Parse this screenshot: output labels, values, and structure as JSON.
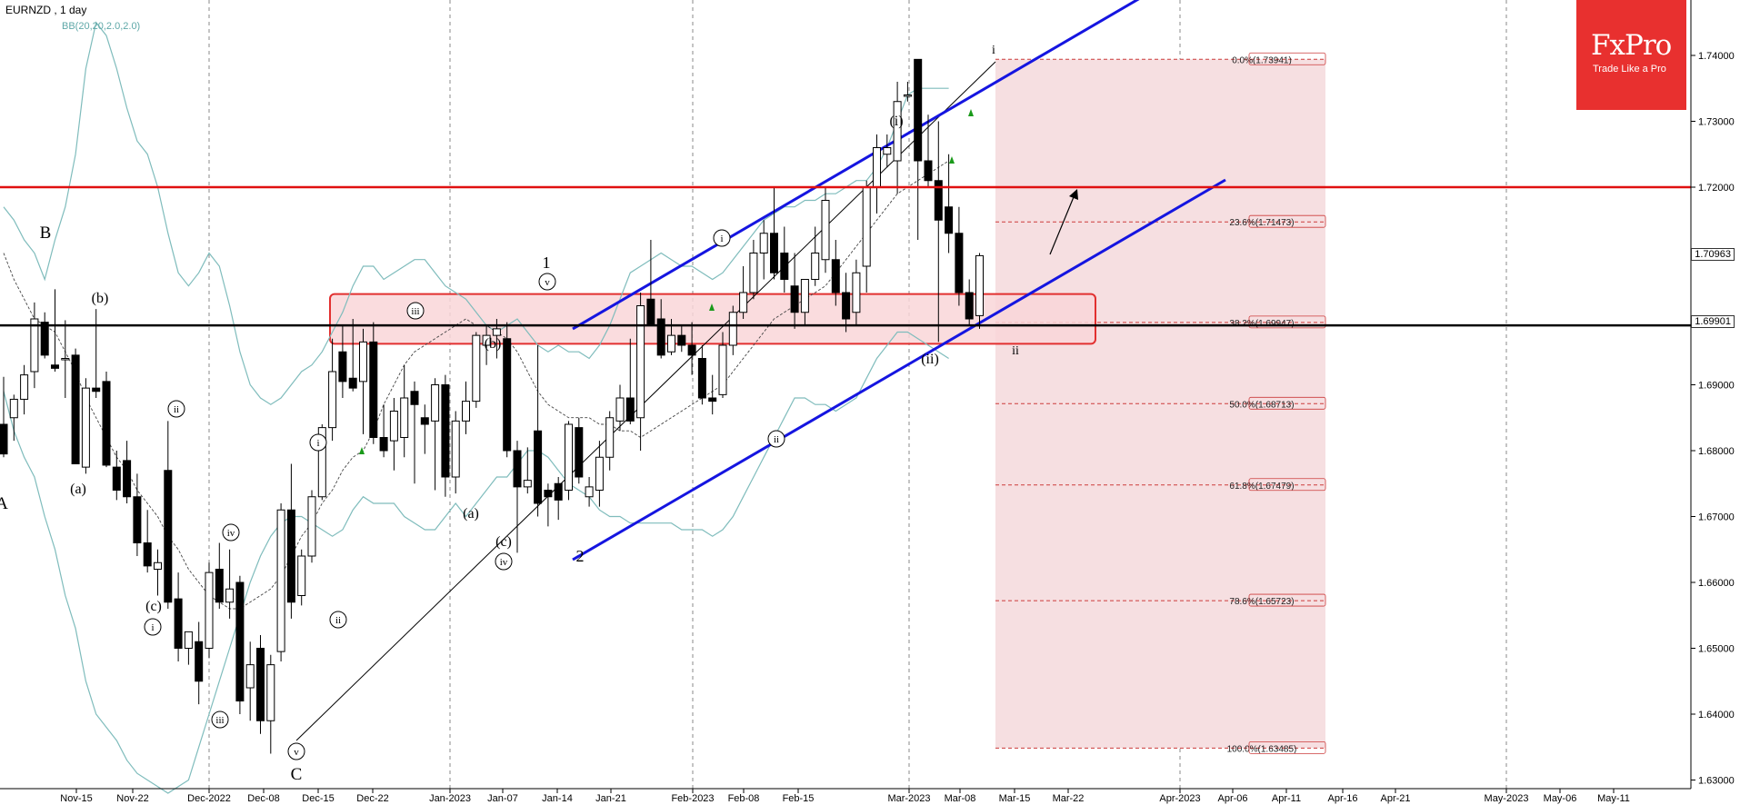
{
  "header": {
    "symbol": "EURNZD , 1 day",
    "indicator": "BB(20,20,2.0,2.0)"
  },
  "logo": {
    "brand": "FxPro",
    "tagline": "Trade Like a Pro"
  },
  "price_boxes": {
    "current": "1.70963",
    "line": "1.69901"
  },
  "colors": {
    "channel": "#1515e0",
    "resistance": "#e01010",
    "support": "#000000",
    "zone_fill": "#f9d6d8",
    "zone_border": "#e23030",
    "fib_fill": "#f6dfe1",
    "fib_line": "#cc3b3b",
    "bollinger": "#7fbcbc",
    "logo_bg": "#e8302f"
  },
  "chart_data": {
    "type": "candlestick",
    "x_tick_labels": [
      "Nov-15",
      "Nov-22",
      "Dec-2022",
      "Dec-08",
      "Dec-15",
      "Dec-22",
      "Jan-2023",
      "Jan-07",
      "Jan-14",
      "Jan-21",
      "Feb-2023",
      "Feb-08",
      "Feb-15",
      "Mar-2023",
      "Mar-08",
      "Mar-15",
      "Mar-22",
      "Apr-2023",
      "Apr-06",
      "Apr-11",
      "Apr-16",
      "Apr-21",
      "May-2023",
      "May-06",
      "May-11"
    ],
    "y_tick_labels": [
      "1.74000",
      "1.73000",
      "1.72000",
      "1.71000",
      "1.70000",
      "1.69000",
      "1.68000",
      "1.67000",
      "1.66000",
      "1.65000",
      "1.64000",
      "1.63000"
    ],
    "ylim": [
      1.6285,
      1.7475
    ],
    "grid": "vertical dashed",
    "candles": [
      {
        "o": 1.684,
        "h": 1.6912,
        "l": 1.679,
        "c": 1.6795
      },
      {
        "o": 1.685,
        "h": 1.6885,
        "l": 1.6815,
        "c": 1.6878
      },
      {
        "o": 1.6878,
        "h": 1.693,
        "l": 1.6855,
        "c": 1.6915
      },
      {
        "o": 1.692,
        "h": 1.7025,
        "l": 1.6895,
        "c": 1.7
      },
      {
        "o": 1.6995,
        "h": 1.701,
        "l": 1.694,
        "c": 1.6945
      },
      {
        "o": 1.693,
        "h": 1.7045,
        "l": 1.692,
        "c": 1.6925
      },
      {
        "o": 1.694,
        "h": 1.6998,
        "l": 1.688,
        "c": 1.694
      },
      {
        "o": 1.6945,
        "h": 1.6955,
        "l": 1.6785,
        "c": 1.678
      },
      {
        "o": 1.6775,
        "h": 1.691,
        "l": 1.6765,
        "c": 1.6895
      },
      {
        "o": 1.6895,
        "h": 1.7015,
        "l": 1.688,
        "c": 1.689
      },
      {
        "o": 1.6905,
        "h": 1.692,
        "l": 1.6775,
        "c": 1.6778
      },
      {
        "o": 1.6775,
        "h": 1.68,
        "l": 1.6725,
        "c": 1.674
      },
      {
        "o": 1.6785,
        "h": 1.6815,
        "l": 1.672,
        "c": 1.673
      },
      {
        "o": 1.673,
        "h": 1.6765,
        "l": 1.664,
        "c": 1.666
      },
      {
        "o": 1.666,
        "h": 1.671,
        "l": 1.6615,
        "c": 1.6625
      },
      {
        "o": 1.662,
        "h": 1.665,
        "l": 1.658,
        "c": 1.663
      },
      {
        "o": 1.677,
        "h": 1.6845,
        "l": 1.656,
        "c": 1.657
      },
      {
        "o": 1.6575,
        "h": 1.6615,
        "l": 1.648,
        "c": 1.65
      },
      {
        "o": 1.65,
        "h": 1.652,
        "l": 1.6475,
        "c": 1.6525
      },
      {
        "o": 1.651,
        "h": 1.654,
        "l": 1.6415,
        "c": 1.645
      },
      {
        "o": 1.65,
        "h": 1.663,
        "l": 1.6485,
        "c": 1.6615
      },
      {
        "o": 1.662,
        "h": 1.666,
        "l": 1.656,
        "c": 1.657
      },
      {
        "o": 1.657,
        "h": 1.665,
        "l": 1.6545,
        "c": 1.659
      },
      {
        "o": 1.66,
        "h": 1.661,
        "l": 1.64,
        "c": 1.642
      },
      {
        "o": 1.644,
        "h": 1.651,
        "l": 1.639,
        "c": 1.6475
      },
      {
        "o": 1.65,
        "h": 1.652,
        "l": 1.637,
        "c": 1.639
      },
      {
        "o": 1.639,
        "h": 1.649,
        "l": 1.634,
        "c": 1.6475
      },
      {
        "o": 1.6495,
        "h": 1.672,
        "l": 1.648,
        "c": 1.671
      },
      {
        "o": 1.671,
        "h": 1.678,
        "l": 1.6545,
        "c": 1.657
      },
      {
        "o": 1.658,
        "h": 1.665,
        "l": 1.6565,
        "c": 1.664
      },
      {
        "o": 1.664,
        "h": 1.674,
        "l": 1.663,
        "c": 1.673
      },
      {
        "o": 1.673,
        "h": 1.684,
        "l": 1.6725,
        "c": 1.6835
      },
      {
        "o": 1.6835,
        "h": 1.697,
        "l": 1.6815,
        "c": 1.692
      },
      {
        "o": 1.695,
        "h": 1.699,
        "l": 1.688,
        "c": 1.6905
      },
      {
        "o": 1.691,
        "h": 1.7,
        "l": 1.689,
        "c": 1.6895
      },
      {
        "o": 1.6905,
        "h": 1.6985,
        "l": 1.6825,
        "c": 1.6965
      },
      {
        "o": 1.6965,
        "h": 1.6995,
        "l": 1.681,
        "c": 1.682
      },
      {
        "o": 1.682,
        "h": 1.687,
        "l": 1.679,
        "c": 1.68
      },
      {
        "o": 1.6815,
        "h": 1.688,
        "l": 1.677,
        "c": 1.686
      },
      {
        "o": 1.682,
        "h": 1.693,
        "l": 1.679,
        "c": 1.688
      },
      {
        "o": 1.689,
        "h": 1.6905,
        "l": 1.675,
        "c": 1.687
      },
      {
        "o": 1.685,
        "h": 1.687,
        "l": 1.6795,
        "c": 1.684
      },
      {
        "o": 1.6845,
        "h": 1.691,
        "l": 1.674,
        "c": 1.69
      },
      {
        "o": 1.69,
        "h": 1.6915,
        "l": 1.673,
        "c": 1.676
      },
      {
        "o": 1.676,
        "h": 1.686,
        "l": 1.6735,
        "c": 1.6845
      },
      {
        "o": 1.6845,
        "h": 1.6905,
        "l": 1.6825,
        "c": 1.6875
      },
      {
        "o": 1.6875,
        "h": 1.698,
        "l": 1.6865,
        "c": 1.6975
      },
      {
        "o": 1.696,
        "h": 1.699,
        "l": 1.693,
        "c": 1.6975
      },
      {
        "o": 1.6975,
        "h": 1.7,
        "l": 1.694,
        "c": 1.6985
      },
      {
        "o": 1.697,
        "h": 1.6995,
        "l": 1.679,
        "c": 1.68
      },
      {
        "o": 1.68,
        "h": 1.6815,
        "l": 1.6645,
        "c": 1.6745
      },
      {
        "o": 1.6745,
        "h": 1.6805,
        "l": 1.6735,
        "c": 1.6755
      },
      {
        "o": 1.683,
        "h": 1.696,
        "l": 1.67,
        "c": 1.672
      },
      {
        "o": 1.674,
        "h": 1.675,
        "l": 1.6685,
        "c": 1.673
      },
      {
        "o": 1.675,
        "h": 1.676,
        "l": 1.6695,
        "c": 1.6725
      },
      {
        "o": 1.674,
        "h": 1.6845,
        "l": 1.6725,
        "c": 1.684
      },
      {
        "o": 1.6835,
        "h": 1.685,
        "l": 1.675,
        "c": 1.676
      },
      {
        "o": 1.673,
        "h": 1.676,
        "l": 1.6715,
        "c": 1.6745
      },
      {
        "o": 1.674,
        "h": 1.6815,
        "l": 1.6715,
        "c": 1.679
      },
      {
        "o": 1.679,
        "h": 1.686,
        "l": 1.677,
        "c": 1.685
      },
      {
        "o": 1.6845,
        "h": 1.69,
        "l": 1.683,
        "c": 1.688
      },
      {
        "o": 1.688,
        "h": 1.697,
        "l": 1.684,
        "c": 1.6845
      },
      {
        "o": 1.685,
        "h": 1.704,
        "l": 1.68,
        "c": 1.702
      },
      {
        "o": 1.703,
        "h": 1.712,
        "l": 1.699,
        "c": 1.699
      },
      {
        "o": 1.7,
        "h": 1.703,
        "l": 1.694,
        "c": 1.6945
      },
      {
        "o": 1.695,
        "h": 1.7,
        "l": 1.6945,
        "c": 1.6975
      },
      {
        "o": 1.6975,
        "h": 1.699,
        "l": 1.695,
        "c": 1.696
      },
      {
        "o": 1.696,
        "h": 1.6995,
        "l": 1.6915,
        "c": 1.6945
      },
      {
        "o": 1.694,
        "h": 1.696,
        "l": 1.687,
        "c": 1.688
      },
      {
        "o": 1.688,
        "h": 1.6915,
        "l": 1.6855,
        "c": 1.6875
      },
      {
        "o": 1.6885,
        "h": 1.698,
        "l": 1.688,
        "c": 1.696
      },
      {
        "o": 1.696,
        "h": 1.702,
        "l": 1.6945,
        "c": 1.701
      },
      {
        "o": 1.701,
        "h": 1.708,
        "l": 1.7,
        "c": 1.704
      },
      {
        "o": 1.704,
        "h": 1.712,
        "l": 1.703,
        "c": 1.71
      },
      {
        "o": 1.71,
        "h": 1.715,
        "l": 1.706,
        "c": 1.713
      },
      {
        "o": 1.713,
        "h": 1.72,
        "l": 1.706,
        "c": 1.707
      },
      {
        "o": 1.71,
        "h": 1.714,
        "l": 1.704,
        "c": 1.706
      },
      {
        "o": 1.705,
        "h": 1.71,
        "l": 1.6985,
        "c": 1.701
      },
      {
        "o": 1.701,
        "h": 1.706,
        "l": 1.699,
        "c": 1.706
      },
      {
        "o": 1.706,
        "h": 1.714,
        "l": 1.705,
        "c": 1.71
      },
      {
        "o": 1.709,
        "h": 1.72,
        "l": 1.707,
        "c": 1.718
      },
      {
        "o": 1.709,
        "h": 1.712,
        "l": 1.702,
        "c": 1.704
      },
      {
        "o": 1.704,
        "h": 1.707,
        "l": 1.698,
        "c": 1.7
      },
      {
        "o": 1.701,
        "h": 1.709,
        "l": 1.699,
        "c": 1.707
      },
      {
        "o": 1.708,
        "h": 1.721,
        "l": 1.704,
        "c": 1.72
      },
      {
        "o": 1.72,
        "h": 1.728,
        "l": 1.716,
        "c": 1.726
      },
      {
        "o": 1.725,
        "h": 1.728,
        "l": 1.723,
        "c": 1.726
      },
      {
        "o": 1.724,
        "h": 1.736,
        "l": 1.719,
        "c": 1.733
      },
      {
        "o": 1.734,
        "h": 1.736,
        "l": 1.733,
        "c": 1.734
      },
      {
        "o": 1.7394,
        "h": 1.7394,
        "l": 1.712,
        "c": 1.724
      },
      {
        "o": 1.724,
        "h": 1.731,
        "l": 1.72,
        "c": 1.721
      },
      {
        "o": 1.721,
        "h": 1.73,
        "l": 1.6965,
        "c": 1.715
      },
      {
        "o": 1.717,
        "h": 1.725,
        "l": 1.71,
        "c": 1.713
      },
      {
        "o": 1.713,
        "h": 1.717,
        "l": 1.702,
        "c": 1.704
      },
      {
        "o": 1.704,
        "h": 1.706,
        "l": 1.699,
        "c": 1.7
      },
      {
        "o": 1.7005,
        "h": 1.71,
        "l": 1.6985,
        "c": 1.7096
      }
    ],
    "bollinger": {
      "upper": [
        1.717,
        1.715,
        1.712,
        1.71,
        1.706,
        1.712,
        1.717,
        1.725,
        1.738,
        1.745,
        1.743,
        1.738,
        1.732,
        1.727,
        1.725,
        1.72,
        1.713,
        1.707,
        1.705,
        1.707,
        1.71,
        1.708,
        1.702,
        1.695,
        1.69,
        1.688,
        1.687,
        1.688,
        1.69,
        1.692,
        1.693,
        1.695,
        1.698,
        1.701,
        1.705,
        1.708,
        1.708,
        1.706,
        1.707,
        1.708,
        1.709,
        1.709,
        1.707,
        1.705,
        1.704,
        1.703,
        1.701,
        1.699,
        1.698,
        1.699,
        1.7,
        1.698,
        1.696,
        1.695,
        1.696,
        1.695,
        1.695,
        1.694,
        1.696,
        1.699,
        1.703,
        1.707,
        1.708,
        1.709,
        1.71,
        1.709,
        1.708,
        1.708,
        1.707,
        1.706,
        1.707,
        1.709,
        1.711,
        1.713,
        1.715,
        1.716,
        1.717,
        1.717,
        1.718,
        1.718,
        1.719,
        1.719,
        1.72,
        1.721,
        1.721,
        1.723,
        1.726,
        1.73,
        1.734,
        1.735,
        1.735,
        1.735,
        1.735
      ],
      "middle": [
        1.71,
        1.706,
        1.703,
        1.7,
        1.699,
        1.698,
        1.695,
        1.692,
        1.688,
        1.685,
        1.682,
        1.679,
        1.677,
        1.674,
        1.672,
        1.67,
        1.667,
        1.665,
        1.662,
        1.66,
        1.658,
        1.657,
        1.656,
        1.656,
        1.657,
        1.658,
        1.659,
        1.661,
        1.664,
        1.667,
        1.669,
        1.672,
        1.674,
        1.677,
        1.679,
        1.68,
        1.683,
        1.687,
        1.69,
        1.693,
        1.695,
        1.696,
        1.697,
        1.698,
        1.699,
        1.7,
        1.699,
        1.699,
        1.698,
        1.697,
        1.695,
        1.692,
        1.689,
        1.687,
        1.686,
        1.685,
        1.685,
        1.685,
        1.684,
        1.684,
        1.683,
        1.683,
        1.682,
        1.683,
        1.684,
        1.685,
        1.686,
        1.687,
        1.688,
        1.689,
        1.69,
        1.692,
        1.694,
        1.696,
        1.698,
        1.7,
        1.701,
        1.702,
        1.703,
        1.704,
        1.705,
        1.707,
        1.709,
        1.711,
        1.713,
        1.715,
        1.717,
        1.719,
        1.72,
        1.721,
        1.722,
        1.723,
        1.724
      ],
      "lower": [
        1.689,
        1.683,
        1.679,
        1.676,
        1.67,
        1.665,
        1.658,
        1.653,
        1.645,
        1.64,
        1.638,
        1.636,
        1.633,
        1.631,
        1.63,
        1.629,
        1.628,
        1.629,
        1.63,
        1.635,
        1.64,
        1.645,
        1.65,
        1.655,
        1.66,
        1.664,
        1.667,
        1.669,
        1.67,
        1.67,
        1.669,
        1.668,
        1.667,
        1.668,
        1.671,
        1.673,
        1.672,
        1.672,
        1.672,
        1.67,
        1.669,
        1.668,
        1.668,
        1.67,
        1.672,
        1.67,
        1.672,
        1.674,
        1.676,
        1.676,
        1.678,
        1.68,
        1.68,
        1.679,
        1.677,
        1.675,
        1.674,
        1.673,
        1.671,
        1.67,
        1.67,
        1.669,
        1.669,
        1.669,
        1.669,
        1.669,
        1.668,
        1.668,
        1.668,
        1.667,
        1.668,
        1.67,
        1.673,
        1.676,
        1.679,
        1.682,
        1.685,
        1.688,
        1.688,
        1.687,
        1.687,
        1.686,
        1.687,
        1.688,
        1.691,
        1.694,
        1.696,
        1.698,
        1.698,
        1.697,
        1.696,
        1.695,
        1.694
      ]
    },
    "levels": {
      "resistance": 1.72,
      "support": 1.69901,
      "zone": [
        1.6965,
        1.7035
      ]
    },
    "fibonacci": [
      {
        "label": "0.0%(1.73941)",
        "value": 1.73941
      },
      {
        "label": "23.6%(1.71473)",
        "value": 1.71473
      },
      {
        "label": "38.2%(1.69947)",
        "value": 1.69947
      },
      {
        "label": "50.0%(1.68713)",
        "value": 1.68713
      },
      {
        "label": "61.8%(1.67479)",
        "value": 1.67479
      },
      {
        "label": "78.6%(1.65723)",
        "value": 1.65723
      },
      {
        "label": "100.0%(1.63485)",
        "value": 1.63485
      }
    ],
    "wave_labels": [
      "A",
      "B",
      "C",
      "1",
      "2",
      "(a)",
      "(b)",
      "(c)",
      "(i)",
      "(ii)",
      "i",
      "ii",
      "iii",
      "iv",
      "v"
    ]
  }
}
